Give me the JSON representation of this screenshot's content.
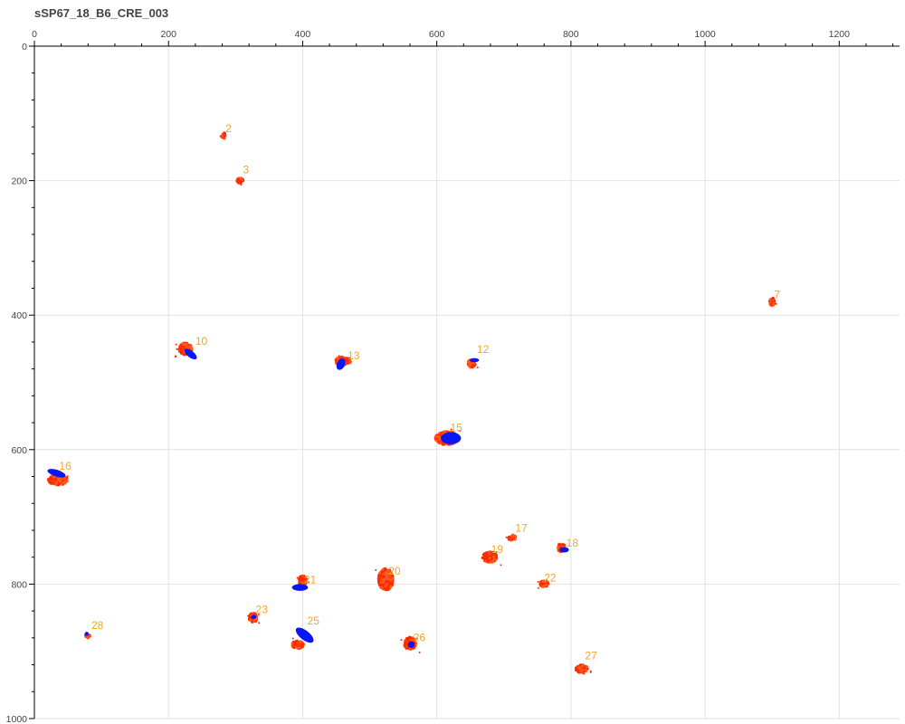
{
  "chart_data": {
    "type": "scatter",
    "title": "sSP67_18_B6_CRE_003",
    "xlabel": "",
    "ylabel": "",
    "xlim": [
      0,
      1290
    ],
    "ylim": [
      0,
      1000
    ],
    "y_inverted": true,
    "x_axis_position": "top",
    "x_ticks": [
      0,
      200,
      400,
      600,
      800,
      1000,
      1200
    ],
    "y_ticks": [
      0,
      200,
      400,
      600,
      800,
      1000
    ],
    "grid": true,
    "colors": {
      "points": "#ff2a00",
      "points_alt": "#ff5a1e",
      "ellipse": "#0b16f5",
      "label": "#f5a623",
      "grid": "#e2e2e2"
    },
    "cells": [
      {
        "id": "2",
        "label_x": 285,
        "label_y": 128,
        "cluster": [
          [
            282,
            133,
            3,
            5
          ]
        ],
        "ellipse": null
      },
      {
        "id": "3",
        "label_x": 311,
        "label_y": 189,
        "cluster": [
          [
            307,
            200,
            5,
            4
          ]
        ],
        "ellipse": null
      },
      {
        "id": "7",
        "label_x": 1103,
        "label_y": 375,
        "cluster": [
          [
            1100,
            380,
            4,
            6
          ]
        ],
        "ellipse": null
      },
      {
        "id": "10",
        "label_x": 240,
        "label_y": 444,
        "cluster": [
          [
            225,
            450,
            10,
            9
          ]
        ],
        "ellipse": [
          233,
          458,
          11,
          5,
          38
        ]
      },
      {
        "id": "12",
        "label_x": 660,
        "label_y": 456,
        "cluster": [
          [
            652,
            472,
            6,
            6
          ]
        ],
        "ellipse": [
          656,
          467,
          7,
          3,
          0
        ]
      },
      {
        "id": "13",
        "label_x": 467,
        "label_y": 466,
        "cluster": [
          [
            460,
            468,
            12,
            6
          ]
        ],
        "ellipse": [
          457,
          473,
          6,
          9,
          25
        ]
      },
      {
        "id": "15",
        "label_x": 620,
        "label_y": 573,
        "cluster": [
          [
            615,
            583,
            17,
            10
          ]
        ],
        "ellipse": [
          621,
          583,
          15,
          9,
          0
        ]
      },
      {
        "id": "16",
        "label_x": 37,
        "label_y": 630,
        "cluster": [
          [
            35,
            645,
            14,
            8
          ]
        ],
        "ellipse": [
          33,
          635,
          14,
          5,
          17
        ]
      },
      {
        "id": "17",
        "label_x": 717,
        "label_y": 722,
        "cluster": [
          [
            712,
            731,
            6,
            4
          ]
        ],
        "ellipse": null
      },
      {
        "id": "18",
        "label_x": 793,
        "label_y": 744,
        "cluster": [
          [
            786,
            746,
            6,
            6
          ]
        ],
        "ellipse": [
          790,
          749,
          7,
          4,
          0
        ]
      },
      {
        "id": "19",
        "label_x": 681,
        "label_y": 754,
        "cluster": [
          [
            679,
            760,
            11,
            8
          ]
        ],
        "ellipse": null
      },
      {
        "id": "20",
        "label_x": 528,
        "label_y": 786,
        "cluster": [
          [
            524,
            793,
            11,
            16
          ]
        ],
        "ellipse": null
      },
      {
        "id": "21",
        "label_x": 402,
        "label_y": 799,
        "cluster": [
          [
            400,
            795,
            6,
            8
          ]
        ],
        "ellipse": [
          396,
          805,
          12,
          5,
          0
        ]
      },
      {
        "id": "22",
        "label_x": 760,
        "label_y": 796,
        "cluster": [
          [
            760,
            800,
            6,
            5
          ]
        ],
        "ellipse": null
      },
      {
        "id": "23",
        "label_x": 330,
        "label_y": 843,
        "cluster": [
          [
            326,
            850,
            6,
            7
          ]
        ],
        "ellipse": [
          327,
          849,
          4,
          3,
          0
        ]
      },
      {
        "id": "25",
        "label_x": 407,
        "label_y": 860,
        "cluster": [
          [
            393,
            890,
            9,
            6
          ]
        ],
        "ellipse": [
          403,
          876,
          16,
          7,
          38
        ]
      },
      {
        "id": "26",
        "label_x": 565,
        "label_y": 885,
        "cluster": [
          [
            560,
            888,
            9,
            9
          ]
        ],
        "ellipse": [
          562,
          890,
          5,
          5,
          0
        ]
      },
      {
        "id": "27",
        "label_x": 821,
        "label_y": 912,
        "cluster": [
          [
            816,
            926,
            9,
            6
          ]
        ],
        "ellipse": null
      },
      {
        "id": "28",
        "label_x": 85,
        "label_y": 867,
        "cluster": [
          [
            80,
            877,
            4,
            3
          ]
        ],
        "ellipse": [
          78,
          874,
          3,
          3,
          0
        ]
      }
    ]
  }
}
